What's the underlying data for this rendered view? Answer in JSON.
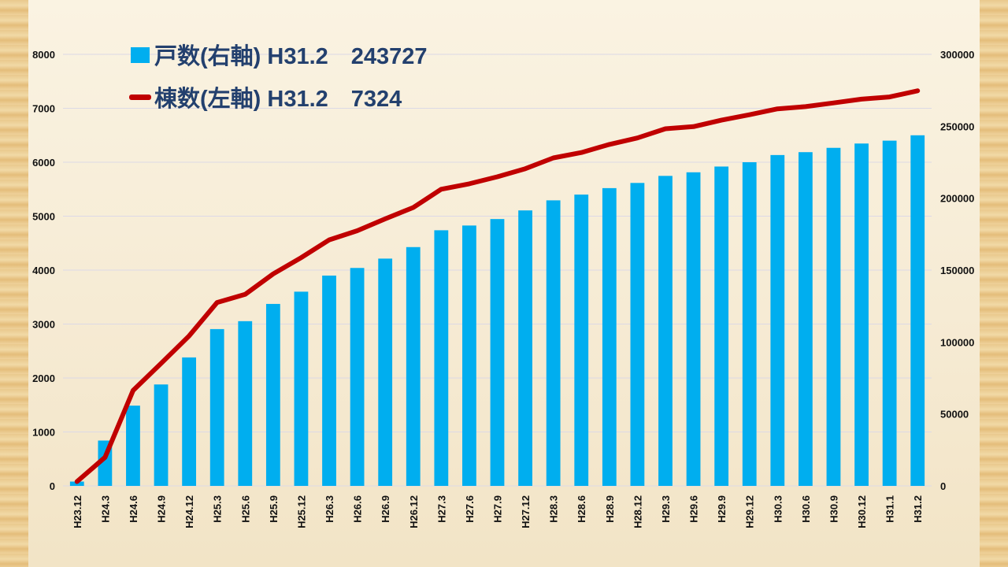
{
  "chart_data": {
    "type": "bar",
    "categories": [
      "H23.12",
      "H24.3",
      "H24.6",
      "H24.9",
      "H24.12",
      "H25.3",
      "H25.6",
      "H25.9",
      "H25.12",
      "H26.3",
      "H26.6",
      "H26.9",
      "H26.12",
      "H27.3",
      "H27.6",
      "H27.9",
      "H27.12",
      "H28.3",
      "H28.6",
      "H28.9",
      "H28.12",
      "H29.3",
      "H29.6",
      "H29.9",
      "H29.12",
      "H30.3",
      "H30.6",
      "H30.9",
      "H30.12",
      "H31.1",
      "H31.2"
    ],
    "series": [
      {
        "name": "戸数(右軸) H31.2　243727",
        "kind": "bar",
        "axis": "right",
        "color": "#00aeef",
        "values": [
          3000,
          31500,
          55800,
          70500,
          89300,
          109000,
          114500,
          126500,
          135000,
          146200,
          151500,
          158000,
          166000,
          177700,
          181000,
          185500,
          191500,
          198500,
          202500,
          207000,
          210600,
          215500,
          218000,
          222000,
          225000,
          230000,
          232000,
          235000,
          238000,
          240000,
          243727
        ]
      },
      {
        "name": "棟数(左軸) H31.2　7324",
        "kind": "line",
        "axis": "left",
        "color": "#c00000",
        "values": [
          80,
          530,
          1770,
          2270,
          2780,
          3400,
          3550,
          3930,
          4230,
          4560,
          4730,
          4950,
          5160,
          5500,
          5600,
          5730,
          5880,
          6080,
          6180,
          6330,
          6450,
          6620,
          6660,
          6780,
          6880,
          6990,
          7030,
          7100,
          7170,
          7210,
          7324
        ]
      }
    ],
    "y_left": {
      "min": 0,
      "max": 8000,
      "ticks": [
        0,
        1000,
        2000,
        3000,
        4000,
        5000,
        6000,
        7000,
        8000
      ]
    },
    "y_right": {
      "min": 0,
      "max": 300000,
      "ticks": [
        0,
        50000,
        100000,
        150000,
        200000,
        250000,
        300000
      ]
    },
    "grid": true,
    "legend_position": "top-left"
  }
}
